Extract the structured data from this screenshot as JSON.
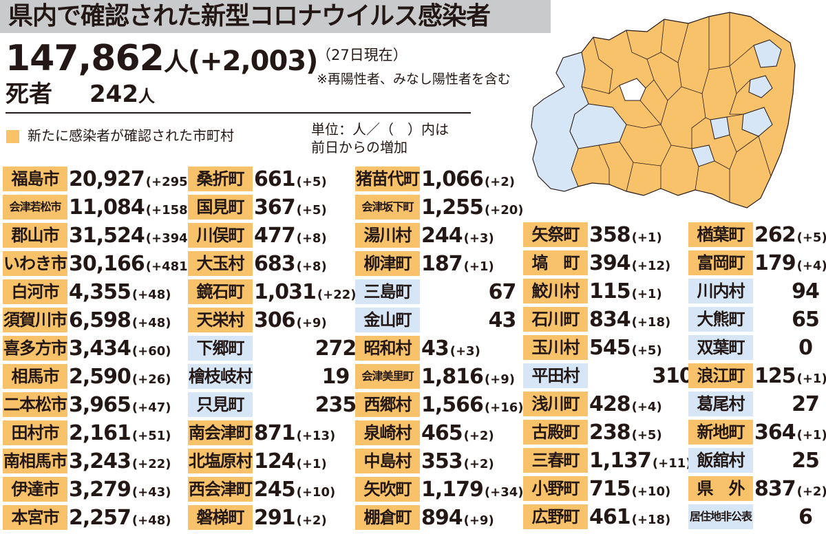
{
  "title": "県内で確認された新型コロナウイルス感染者",
  "total": {
    "count": "147,862",
    "unit": "人",
    "diff": "(+2,003)"
  },
  "as_of": "（27日現在）",
  "note": "※再陽性者、みなし陽性者を含む",
  "deaths": {
    "label": "死者",
    "count": "242",
    "unit": "人"
  },
  "legend": {
    "text": "新たに感染者が確認された市町村",
    "color": "#f8c26a"
  },
  "unit_note": [
    "単位：人／（　）内は",
    "前日からの増加"
  ],
  "colors": {
    "new_cases": "#f8c26a",
    "no_new_cases": "#d7e6f6",
    "title_bar": "#c9cacb"
  },
  "columns": [
    [
      {
        "name": "福島市",
        "value": "20,927",
        "diff": "(+295)",
        "new": true
      },
      {
        "name": "会津若松市",
        "value": "11,084",
        "diff": "(+158)",
        "new": true
      },
      {
        "name": "郡山市",
        "value": "31,524",
        "diff": "(+394)",
        "new": true
      },
      {
        "name": "いわき市",
        "value": "30,166",
        "diff": "(+481)",
        "new": true
      },
      {
        "name": "白河市",
        "value": "4,355",
        "diff": "(+48)",
        "new": true
      },
      {
        "name": "須賀川市",
        "value": "6,598",
        "diff": "(+48)",
        "new": true
      },
      {
        "name": "喜多方市",
        "value": "3,434",
        "diff": "(+60)",
        "new": true
      },
      {
        "name": "相馬市",
        "value": "2,590",
        "diff": "(+26)",
        "new": true
      },
      {
        "name": "二本松市",
        "value": "3,965",
        "diff": "(+47)",
        "new": true
      },
      {
        "name": "田村市",
        "value": "2,161",
        "diff": "(+51)",
        "new": true
      },
      {
        "name": "南相馬市",
        "value": "3,243",
        "diff": "(+22)",
        "new": true
      },
      {
        "name": "伊達市",
        "value": "3,279",
        "diff": "(+43)",
        "new": true
      },
      {
        "name": "本宮市",
        "value": "2,257",
        "diff": "(+48)",
        "new": true
      }
    ],
    [
      {
        "name": "桑折町",
        "value": "661",
        "diff": "(+5)",
        "new": true
      },
      {
        "name": "国見町",
        "value": "367",
        "diff": "(+5)",
        "new": true
      },
      {
        "name": "川俣町",
        "value": "477",
        "diff": "(+8)",
        "new": true
      },
      {
        "name": "大玉村",
        "value": "683",
        "diff": "(+8)",
        "new": true
      },
      {
        "name": "鏡石町",
        "value": "1,031",
        "diff": "(+22)",
        "new": true
      },
      {
        "name": "天栄村",
        "value": "306",
        "diff": "(+9)",
        "new": true
      },
      {
        "name": "下郷町",
        "value": "272",
        "diff": "",
        "new": false
      },
      {
        "name": "檜枝岐村",
        "value": "19",
        "diff": "",
        "new": false
      },
      {
        "name": "只見町",
        "value": "235",
        "diff": "",
        "new": false
      },
      {
        "name": "南会津町",
        "value": "871",
        "diff": "(+13)",
        "new": true
      },
      {
        "name": "北塩原村",
        "value": "124",
        "diff": "(+1)",
        "new": true
      },
      {
        "name": "西会津町",
        "value": "245",
        "diff": "(+10)",
        "new": true
      },
      {
        "name": "磐梯町",
        "value": "291",
        "diff": "(+2)",
        "new": true
      }
    ],
    [
      {
        "name": "猪苗代町",
        "value": "1,066",
        "diff": "(+2)",
        "new": true
      },
      {
        "name": "会津坂下町",
        "value": "1,255",
        "diff": "(+20)",
        "new": true
      },
      {
        "name": "湯川村",
        "value": "244",
        "diff": "(+3)",
        "new": true
      },
      {
        "name": "柳津町",
        "value": "187",
        "diff": "(+1)",
        "new": true
      },
      {
        "name": "三島町",
        "value": "67",
        "diff": "",
        "new": false
      },
      {
        "name": "金山町",
        "value": "43",
        "diff": "",
        "new": false
      },
      {
        "name": "昭和村",
        "value": "43",
        "diff": "(+3)",
        "new": true
      },
      {
        "name": "会津美里町",
        "value": "1,816",
        "diff": "(+9)",
        "new": true
      },
      {
        "name": "西郷村",
        "value": "1,566",
        "diff": "(+16)",
        "new": true
      },
      {
        "name": "泉崎村",
        "value": "465",
        "diff": "(+2)",
        "new": true
      },
      {
        "name": "中島村",
        "value": "353",
        "diff": "(+2)",
        "new": true
      },
      {
        "name": "矢吹町",
        "value": "1,179",
        "diff": "(+34)",
        "new": true
      },
      {
        "name": "棚倉町",
        "value": "894",
        "diff": "(+9)",
        "new": true
      }
    ],
    [
      {
        "name": "矢祭町",
        "value": "358",
        "diff": "(+1)",
        "new": true
      },
      {
        "name": "塙　町",
        "value": "394",
        "diff": "(+12)",
        "new": true
      },
      {
        "name": "鮫川村",
        "value": "115",
        "diff": "(+1)",
        "new": true
      },
      {
        "name": "石川町",
        "value": "834",
        "diff": "(+18)",
        "new": true
      },
      {
        "name": "玉川村",
        "value": "545",
        "diff": "(+5)",
        "new": true
      },
      {
        "name": "平田村",
        "value": "310",
        "diff": "",
        "new": false
      },
      {
        "name": "浅川町",
        "value": "428",
        "diff": "(+4)",
        "new": true
      },
      {
        "name": "古殿町",
        "value": "238",
        "diff": "(+5)",
        "new": true
      },
      {
        "name": "三春町",
        "value": "1,137",
        "diff": "(+11)",
        "new": true
      },
      {
        "name": "小野町",
        "value": "715",
        "diff": "(+10)",
        "new": true
      },
      {
        "name": "広野町",
        "value": "461",
        "diff": "(+18)",
        "new": true
      }
    ],
    [
      {
        "name": "楢葉町",
        "value": "262",
        "diff": "(+5)",
        "new": true
      },
      {
        "name": "富岡町",
        "value": "179",
        "diff": "(+4)",
        "new": true
      },
      {
        "name": "川内村",
        "value": "94",
        "diff": "",
        "new": false
      },
      {
        "name": "大熊町",
        "value": "65",
        "diff": "",
        "new": false
      },
      {
        "name": "双葉町",
        "value": "0",
        "diff": "",
        "new": false
      },
      {
        "name": "浪江町",
        "value": "125",
        "diff": "(+1)",
        "new": true
      },
      {
        "name": "葛尾村",
        "value": "27",
        "diff": "",
        "new": false
      },
      {
        "name": "新地町",
        "value": "364",
        "diff": "(+1)",
        "new": true
      },
      {
        "name": "飯舘村",
        "value": "25",
        "diff": "",
        "new": false
      },
      {
        "name": "県　外",
        "value": "837",
        "diff": "(+2)",
        "new": true
      },
      {
        "name": "居住地非公表",
        "value": "6",
        "diff": "",
        "new": false
      }
    ]
  ]
}
